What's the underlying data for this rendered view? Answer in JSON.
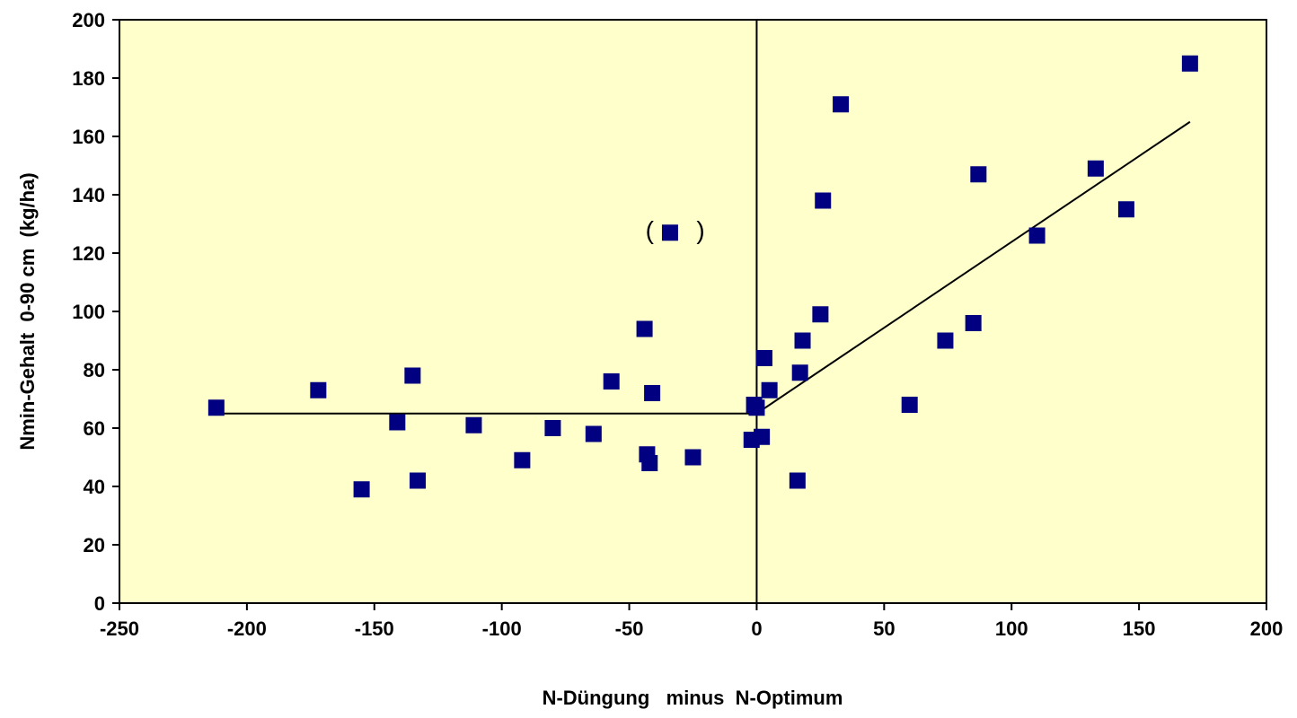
{
  "chart_data": {
    "type": "scatter",
    "title": "",
    "xlabel": "N-Düngung   minus  N-Optimum",
    "ylabel": "Nmin-Gehalt  0-90 cm  (kg/ha)",
    "xlim": [
      -250,
      200
    ],
    "ylim": [
      0,
      200
    ],
    "xticks": [
      -250,
      -200,
      -150,
      -100,
      -50,
      0,
      50,
      100,
      150,
      200
    ],
    "yticks": [
      0,
      20,
      40,
      60,
      80,
      100,
      120,
      140,
      160,
      180,
      200
    ],
    "grid": false,
    "legend": "none",
    "colors": {
      "plot_background": "#FFFFCC",
      "marker": "#000080",
      "line": "#000000"
    },
    "points": [
      {
        "x": -212,
        "y": 67
      },
      {
        "x": -172,
        "y": 73
      },
      {
        "x": -155,
        "y": 39
      },
      {
        "x": -141,
        "y": 62
      },
      {
        "x": -135,
        "y": 78
      },
      {
        "x": -133,
        "y": 42
      },
      {
        "x": -111,
        "y": 61
      },
      {
        "x": -92,
        "y": 49
      },
      {
        "x": -80,
        "y": 60
      },
      {
        "x": -64,
        "y": 58
      },
      {
        "x": -57,
        "y": 76
      },
      {
        "x": -44,
        "y": 94
      },
      {
        "x": -43,
        "y": 51
      },
      {
        "x": -42,
        "y": 48
      },
      {
        "x": -41,
        "y": 72
      },
      {
        "x": -34,
        "y": 127
      },
      {
        "x": -25,
        "y": 50
      },
      {
        "x": -2,
        "y": 56
      },
      {
        "x": -1,
        "y": 68
      },
      {
        "x": 0,
        "y": 67
      },
      {
        "x": 2,
        "y": 57
      },
      {
        "x": 3,
        "y": 84
      },
      {
        "x": 5,
        "y": 73
      },
      {
        "x": 16,
        "y": 42
      },
      {
        "x": 17,
        "y": 79
      },
      {
        "x": 18,
        "y": 90
      },
      {
        "x": 25,
        "y": 99
      },
      {
        "x": 26,
        "y": 138
      },
      {
        "x": 33,
        "y": 171
      },
      {
        "x": 60,
        "y": 68
      },
      {
        "x": 74,
        "y": 90
      },
      {
        "x": 85,
        "y": 96
      },
      {
        "x": 87,
        "y": 147
      },
      {
        "x": 110,
        "y": 126
      },
      {
        "x": 133,
        "y": 149
      },
      {
        "x": 145,
        "y": 135
      },
      {
        "x": 170,
        "y": 185
      }
    ],
    "lines": [
      {
        "from": [
          -212,
          65
        ],
        "to": [
          0,
          65
        ]
      },
      {
        "from": [
          0,
          65
        ],
        "to": [
          170,
          165
        ]
      },
      {
        "from": [
          0,
          0
        ],
        "to": [
          0,
          200
        ]
      }
    ],
    "annotations": [
      {
        "text": "(",
        "x": -42,
        "y": 128
      },
      {
        "text": ")",
        "x": -22,
        "y": 128
      }
    ]
  }
}
